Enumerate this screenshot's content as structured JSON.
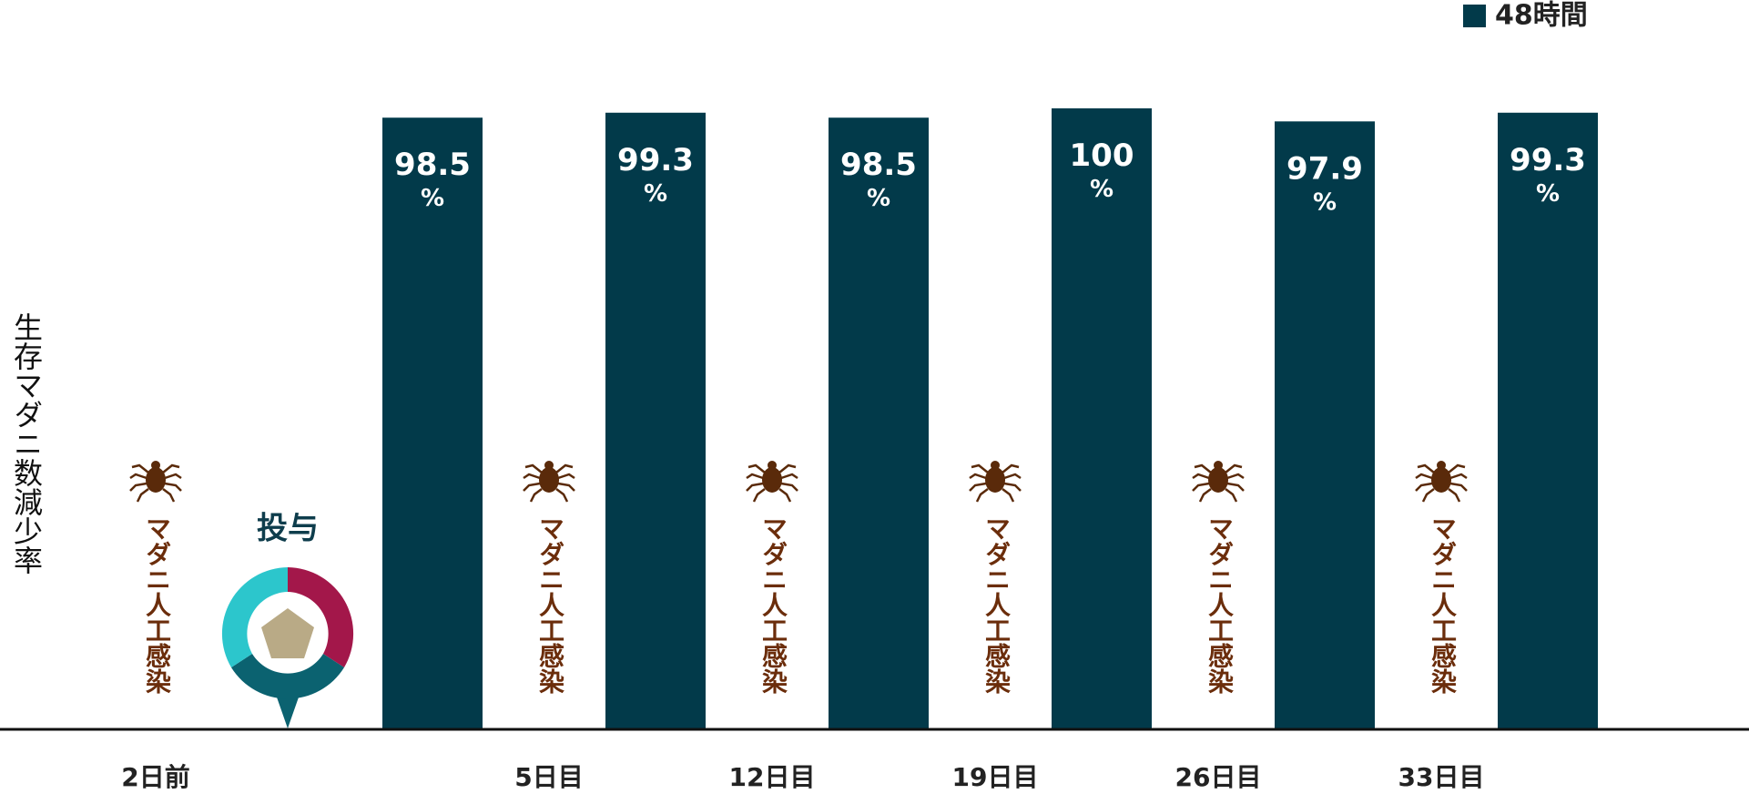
{
  "chart_data": {
    "type": "bar",
    "y_label": "生存マダニ数減少率",
    "categories": [
      null,
      null,
      null,
      null,
      null,
      null
    ],
    "series": [
      {
        "name": "48時間",
        "color": "#023a4a",
        "values": [
          98.5,
          99.3,
          98.5,
          100,
          97.9,
          99.3
        ],
        "value_labels": [
          "98.5%",
          "99.3%",
          "98.5%",
          "100%",
          "97.9%",
          "99.3%"
        ]
      }
    ],
    "ylim": [
      0,
      100
    ],
    "day_labels": [
      "2日前",
      "5日目",
      "12日目",
      "19日目",
      "26日目",
      "33日目"
    ],
    "infestation_label": "マダニ人工感染",
    "dosing_label": "投与",
    "legend": "top-right"
  }
}
